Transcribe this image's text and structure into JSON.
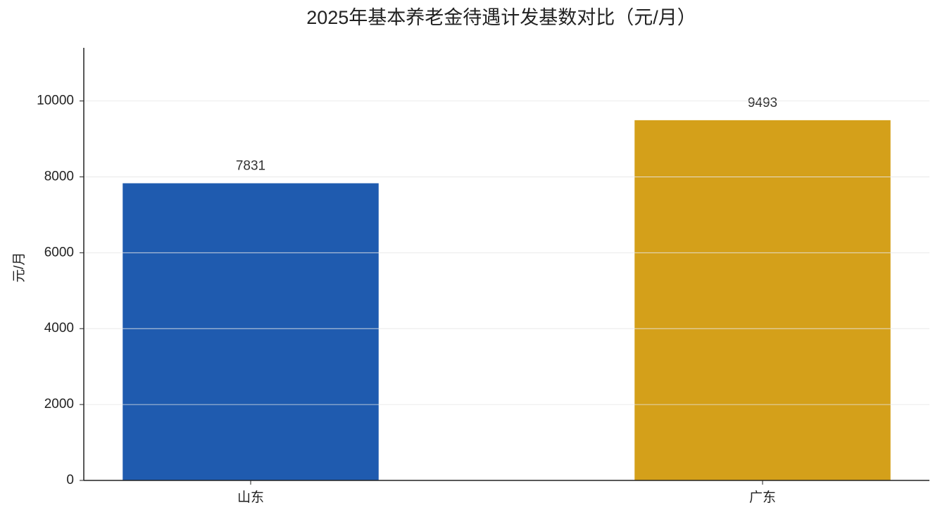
{
  "chart_data": {
    "type": "bar",
    "title": "2025年基本养老金待遇计发基数对比（元/月）",
    "y_label": "元/月",
    "categories": [
      "山东",
      "广东"
    ],
    "values": [
      7831,
      9493
    ],
    "colors": [
      "#1f5baf",
      "#d4a01a"
    ],
    "ylim": [
      0,
      11400
    ],
    "yticks": [
      0,
      2000,
      4000,
      6000,
      8000,
      10000
    ],
    "grid": true
  }
}
